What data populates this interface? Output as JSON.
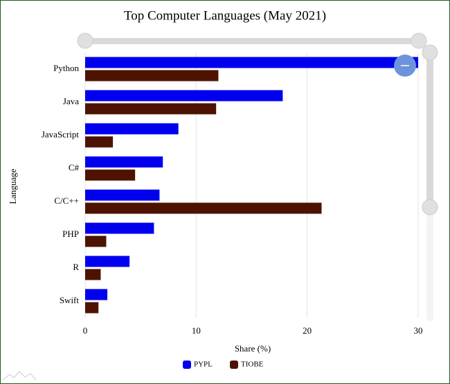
{
  "chart_data": {
    "type": "bar",
    "orientation": "horizontal",
    "title": "Top Computer Languages (May 2021)",
    "x_label": "Share (%)",
    "y_label": "Language",
    "categories": [
      "Python",
      "Java",
      "JavaScript",
      "C#",
      "C/C++",
      "PHP",
      "R",
      "Swift"
    ],
    "series": [
      {
        "name": "PYPL",
        "color": "#0000ee",
        "values": [
          30.0,
          17.8,
          8.4,
          7.0,
          6.7,
          6.2,
          4.0,
          2.0
        ]
      },
      {
        "name": "TIOBE",
        "color": "#4d1300",
        "values": [
          12.0,
          11.8,
          2.5,
          4.5,
          21.3,
          1.9,
          1.4,
          1.2
        ]
      }
    ],
    "xlim": [
      0,
      30
    ],
    "xticks": [
      0,
      10,
      20,
      30
    ],
    "grid": true
  }
}
